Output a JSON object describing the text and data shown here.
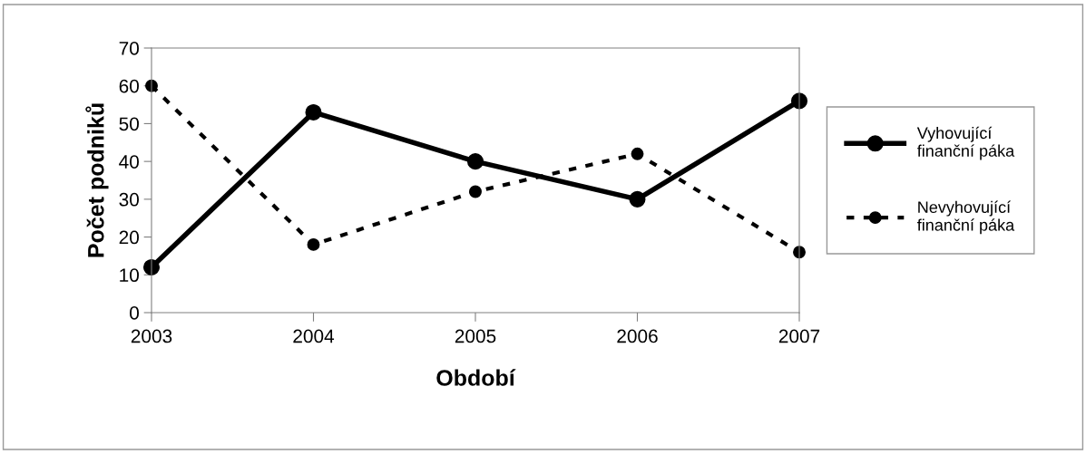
{
  "chart_data": {
    "type": "line",
    "xlabel": "Období",
    "ylabel": "Počet podniků",
    "categories": [
      "2003",
      "2004",
      "2005",
      "2006",
      "2007"
    ],
    "series": [
      {
        "name": "Vyhovující\nfinanční páka",
        "color": "#000000",
        "values": [
          12,
          53,
          40,
          30,
          56
        ],
        "line_style": "solid"
      },
      {
        "name": "Nevyhovující\nfinanční páka",
        "color": "#000000",
        "values": [
          60,
          18,
          32,
          42,
          16
        ],
        "line_style": "dashed"
      }
    ],
    "ylim": [
      0,
      70
    ],
    "yticks": [
      0,
      10,
      20,
      30,
      40,
      50,
      60,
      70
    ],
    "grid": false,
    "legend": "right",
    "marker": "circle"
  }
}
